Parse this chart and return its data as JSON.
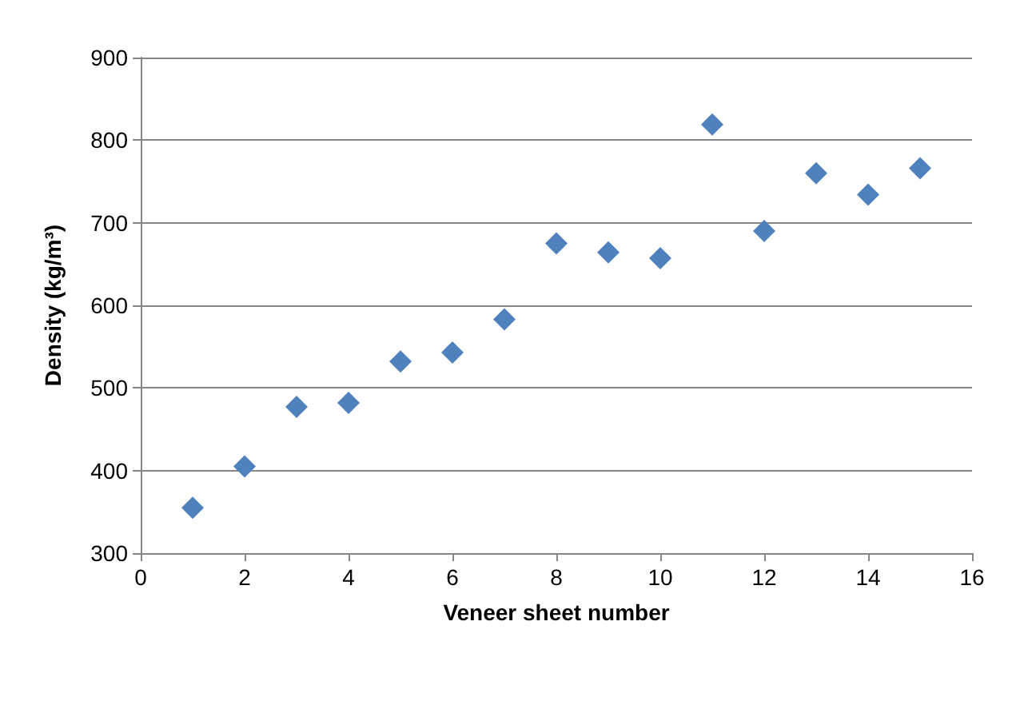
{
  "chart_data": {
    "type": "scatter",
    "xlabel": "Veneer sheet number",
    "ylabel": "Density (kg/m³)",
    "x": [
      1,
      2,
      3,
      4,
      5,
      6,
      7,
      8,
      9,
      10,
      11,
      12,
      13,
      14,
      15
    ],
    "series": [
      {
        "color": "#4f81bd",
        "values": [
          355,
          405,
          477,
          482,
          532,
          543,
          583,
          675,
          664,
          657,
          819,
          690,
          760,
          734,
          766
        ]
      }
    ],
    "xlim": [
      0,
      16
    ],
    "xticks": [
      0,
      2,
      4,
      6,
      8,
      10,
      12,
      14,
      16
    ],
    "ylim": [
      300,
      900
    ],
    "yticks": [
      300,
      400,
      500,
      600,
      700,
      800,
      900
    ],
    "grid": "y",
    "marker": "diamond"
  }
}
